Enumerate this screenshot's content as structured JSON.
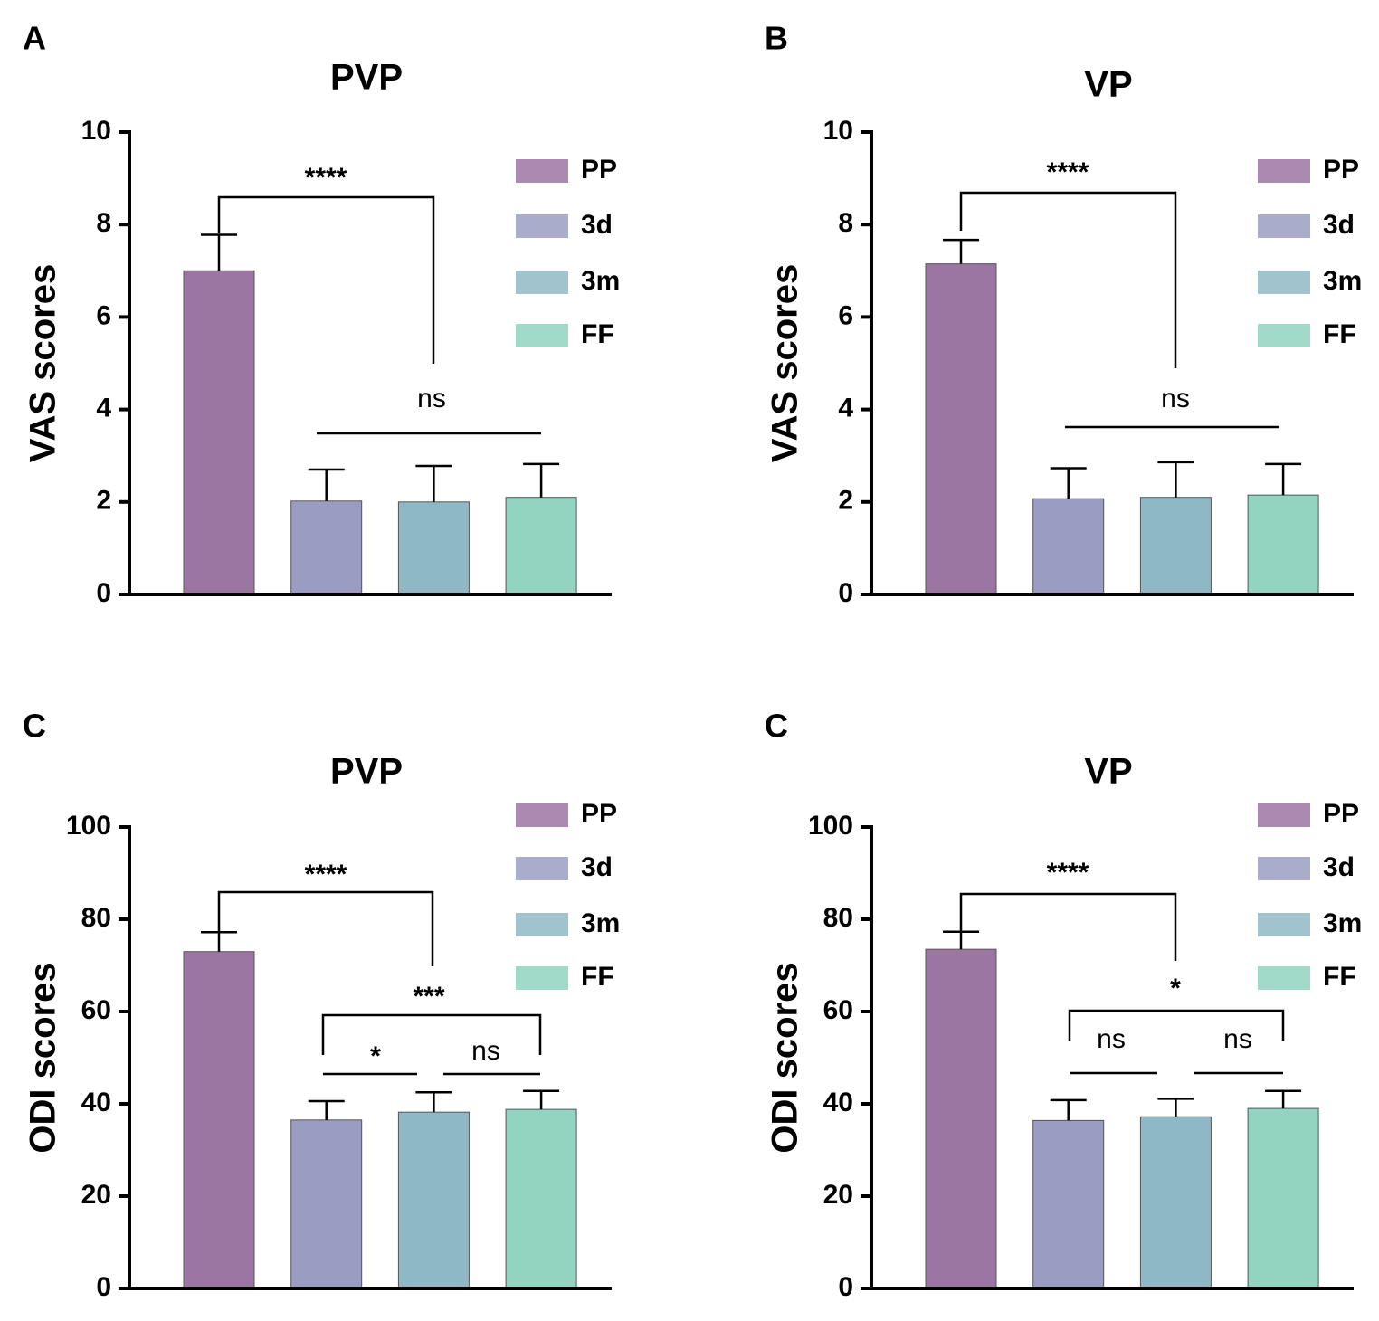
{
  "chart_data": [
    {
      "type": "bar",
      "panel": "A",
      "title": "PVP",
      "ylabel": "VAS scores",
      "categories": [
        "PP",
        "3d",
        "3m",
        "FF"
      ],
      "values": [
        7.0,
        2.02,
        2.0,
        2.1
      ],
      "errors": [
        0.78,
        0.68,
        0.78,
        0.72
      ],
      "colors": [
        "#9c76a3",
        "#9a9dc1",
        "#8fb8c6",
        "#92d4c0"
      ],
      "ylim": [
        0,
        10
      ],
      "yticks": [
        0,
        2,
        4,
        6,
        8,
        10
      ],
      "annotations": [
        "****",
        "ns"
      ]
    },
    {
      "type": "bar",
      "panel": "B",
      "title": "VP",
      "ylabel": "VAS scores",
      "categories": [
        "PP",
        "3d",
        "3m",
        "FF"
      ],
      "values": [
        7.15,
        2.07,
        2.1,
        2.15
      ],
      "errors": [
        0.52,
        0.66,
        0.76,
        0.67
      ],
      "colors": [
        "#9c76a3",
        "#9a9dc1",
        "#8fb8c6",
        "#92d4c0"
      ],
      "ylim": [
        0,
        10
      ],
      "yticks": [
        0,
        2,
        4,
        6,
        8,
        10
      ],
      "annotations": [
        "****",
        "ns"
      ]
    },
    {
      "type": "bar",
      "panel": "C",
      "title": "PVP",
      "ylabel": "ODI scores",
      "categories": [
        "PP",
        "3d",
        "3m",
        "FF"
      ],
      "values": [
        73.0,
        36.5,
        38.2,
        38.8
      ],
      "errors": [
        4.2,
        4.1,
        4.3,
        4.0
      ],
      "colors": [
        "#9c76a3",
        "#9a9dc1",
        "#8fb8c6",
        "#92d4c0"
      ],
      "ylim": [
        0,
        100
      ],
      "yticks": [
        0,
        20,
        40,
        60,
        80,
        100
      ],
      "annotations": [
        "****",
        "***",
        "*",
        "ns"
      ]
    },
    {
      "type": "bar",
      "panel": "C",
      "title": "VP",
      "ylabel": "ODI scores",
      "categories": [
        "PP",
        "3d",
        "3m",
        "FF"
      ],
      "values": [
        73.5,
        36.4,
        37.2,
        39.0
      ],
      "errors": [
        3.8,
        4.4,
        3.9,
        3.8
      ],
      "colors": [
        "#9c76a3",
        "#9a9dc1",
        "#8fb8c6",
        "#92d4c0"
      ],
      "ylim": [
        0,
        100
      ],
      "yticks": [
        0,
        20,
        40,
        60,
        80,
        100
      ],
      "annotations": [
        "****",
        "*",
        "ns",
        "ns"
      ]
    }
  ]
}
